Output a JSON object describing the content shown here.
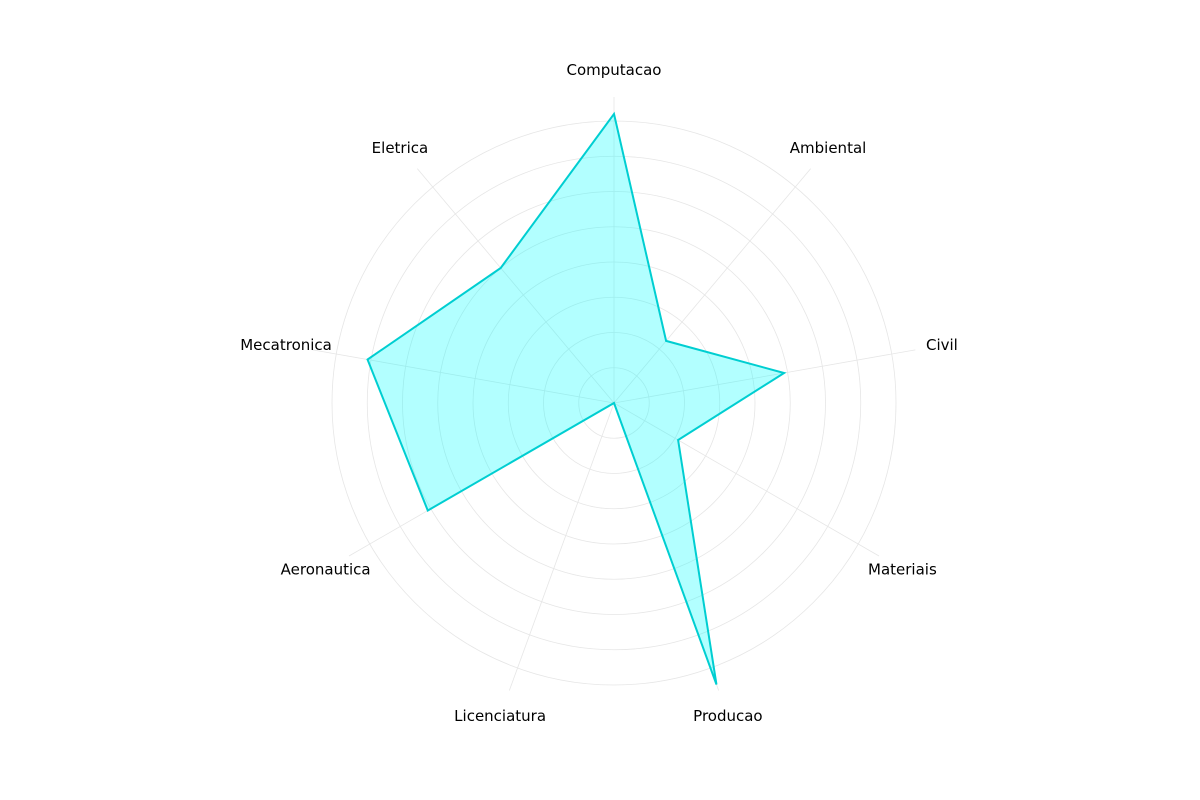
{
  "chart_data": {
    "type": "radar",
    "categories": [
      "Computacao",
      "Ambiental",
      "Civil",
      "Materiais",
      "Producao",
      "Licenciatura",
      "Aeronautica",
      "Mecatronica",
      "Eletrica"
    ],
    "series": [
      {
        "values": [
          8.2,
          2.3,
          4.9,
          2.1,
          8.5,
          0.0,
          6.1,
          7.1,
          5.0
        ]
      }
    ],
    "rlim": [
      0,
      8
    ],
    "ring_count": 8,
    "grid": true,
    "start_angle_deg": 90,
    "direction": "clockwise",
    "colors": {
      "line": "#00CED1",
      "fill": "#00FFFF",
      "grid": "#e6e6e6"
    }
  }
}
